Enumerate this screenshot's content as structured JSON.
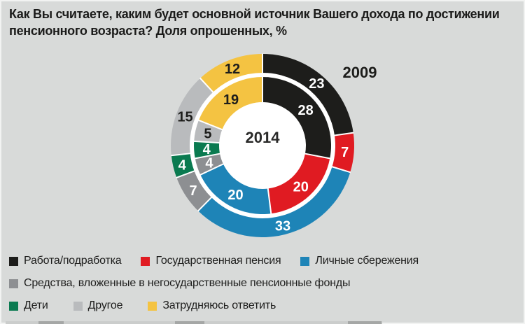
{
  "page": {
    "background": "#d8dad9"
  },
  "title": {
    "full": "Как Вы считаете, каким будет основной источник Вашего дохода по достижении пенсионного возраста? Доля опрошенных, %",
    "lines": [
      "Как Вы считаете, каким будет основной источник Вашего дохода по достижении",
      "пенсионного возраста? Доля опрошенных, %"
    ]
  },
  "chart_data": {
    "type": "pie",
    "subtype": "nested-donut",
    "unit": "%",
    "categories": [
      "Работа/подработка",
      "Государственная пенсия",
      "Личные сбережения",
      "Средства, вложенные в негосударственные пенсионные фонды",
      "Дети",
      "Другое",
      "Затрудняюсь ответить"
    ],
    "colors": [
      "#1d1d1b",
      "#e01b22",
      "#1e84b7",
      "#8d8f92",
      "#0a7a50",
      "#b9bbbd",
      "#f4c342"
    ],
    "value_label_colors": [
      "#ffffff",
      "#ffffff",
      "#ffffff",
      "#ffffff",
      "#ffffff",
      "#1d1d1b",
      "#1d1d1b"
    ],
    "series": [
      {
        "name": "2009",
        "ring": "outer",
        "values": [
          23,
          7,
          33,
          7,
          4,
          15,
          12
        ]
      },
      {
        "name": "2014",
        "ring": "inner",
        "values": [
          28,
          20,
          20,
          4,
          4,
          5,
          19
        ]
      }
    ],
    "center_label": "2014",
    "outer_series_label": "2009",
    "start_angle_deg": 0,
    "direction": "clockwise",
    "legend_position": "bottom"
  },
  "legend": {
    "rows": [
      [
        0,
        1,
        2
      ],
      [
        3
      ],
      [
        4,
        5,
        6
      ]
    ]
  }
}
